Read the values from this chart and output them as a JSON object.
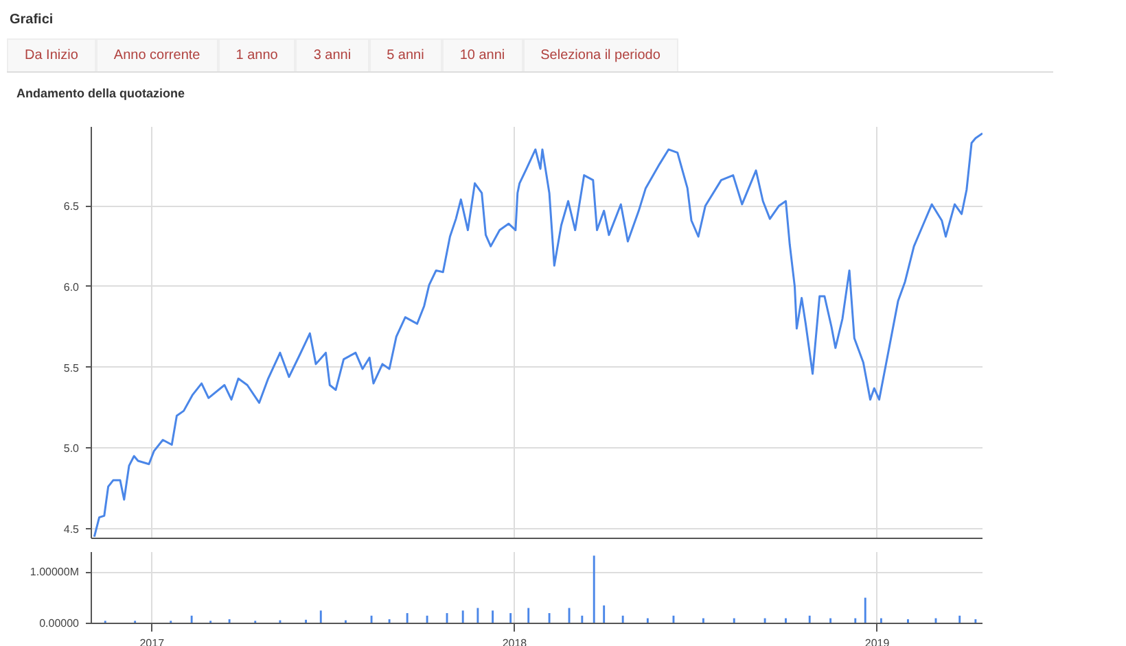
{
  "chart_data": [
    {
      "type": "line",
      "title": "Grafici",
      "subtitle": "Andamento della quotazione",
      "annotations": [
        "Da Inizio",
        "Anno corrente",
        "1 anno",
        "3 anni",
        "5 anni",
        "10 anni",
        "Seleziona il periodo"
      ],
      "x": [
        "2016-11-04",
        "2016-11-09",
        "2016-11-14",
        "2016-11-18",
        "2016-11-23",
        "2016-11-30",
        "2016-12-04",
        "2016-12-09",
        "2016-12-14",
        "2016-12-18",
        "2016-12-29",
        "2017-01-03",
        "2017-01-12",
        "2017-01-21",
        "2017-01-26",
        "2017-02-02",
        "2017-02-11",
        "2017-02-20",
        "2017-02-27",
        "2017-03-15",
        "2017-03-22",
        "2017-03-29",
        "2017-04-07",
        "2017-04-19",
        "2017-04-28",
        "2017-05-10",
        "2017-05-19",
        "2017-05-30",
        "2017-06-09",
        "2017-06-15",
        "2017-06-25",
        "2017-06-29",
        "2017-07-05",
        "2017-07-13",
        "2017-07-25",
        "2017-08-01",
        "2017-08-08",
        "2017-08-12",
        "2017-08-21",
        "2017-08-28",
        "2017-09-04",
        "2017-09-13",
        "2017-09-25",
        "2017-10-02",
        "2017-10-07",
        "2017-10-14",
        "2017-10-21",
        "2017-10-28",
        "2017-11-03",
        "2017-11-08",
        "2017-11-15",
        "2017-11-22",
        "2017-11-29",
        "2017-12-03",
        "2017-12-08",
        "2017-12-17",
        "2017-12-26",
        "2018-01-02",
        "2018-01-04",
        "2018-01-06",
        "2018-01-13",
        "2018-01-22",
        "2018-01-27",
        "2018-01-29",
        "2018-02-05",
        "2018-02-10",
        "2018-02-17",
        "2018-02-24",
        "2018-03-03",
        "2018-03-12",
        "2018-03-21",
        "2018-03-25",
        "2018-04-01",
        "2018-04-06",
        "2018-04-18",
        "2018-04-25",
        "2018-05-06",
        "2018-05-13",
        "2018-05-27",
        "2018-06-05",
        "2018-06-14",
        "2018-06-24",
        "2018-06-28",
        "2018-07-05",
        "2018-07-12",
        "2018-07-28",
        "2018-08-09",
        "2018-08-18",
        "2018-09-01",
        "2018-09-08",
        "2018-09-15",
        "2018-09-24",
        "2018-10-01",
        "2018-10-05",
        "2018-10-10",
        "2018-10-12",
        "2018-10-17",
        "2018-10-21",
        "2018-10-28",
        "2018-11-04",
        "2018-11-09",
        "2018-11-16",
        "2018-11-20",
        "2018-11-27",
        "2018-12-04",
        "2018-12-09",
        "2018-12-18",
        "2018-12-25",
        "2018-12-29",
        "2019-01-03",
        "2019-01-13",
        "2019-01-22",
        "2019-01-29",
        "2019-02-07",
        "2019-02-16",
        "2019-02-25",
        "2019-03-07",
        "2019-03-11",
        "2019-03-20",
        "2019-03-27",
        "2019-04-01",
        "2019-04-06",
        "2019-04-10",
        "2019-04-17"
      ],
      "series": [
        {
          "color": "#4a86e8",
          "values": [
            4.45,
            4.57,
            4.58,
            4.76,
            4.8,
            4.8,
            4.68,
            4.89,
            4.95,
            4.92,
            4.9,
            4.98,
            5.05,
            5.02,
            5.2,
            5.23,
            5.33,
            5.4,
            5.31,
            5.39,
            5.3,
            5.43,
            5.39,
            5.28,
            5.43,
            5.59,
            5.44,
            5.58,
            5.71,
            5.52,
            5.59,
            5.39,
            5.36,
            5.55,
            5.59,
            5.49,
            5.56,
            5.4,
            5.52,
            5.49,
            5.69,
            5.81,
            5.77,
            5.88,
            6.01,
            6.1,
            6.09,
            6.31,
            6.42,
            6.54,
            6.35,
            6.64,
            6.58,
            6.32,
            6.25,
            6.35,
            6.39,
            6.35,
            6.58,
            6.64,
            6.73,
            6.85,
            6.73,
            6.85,
            6.58,
            6.13,
            6.38,
            6.53,
            6.35,
            6.69,
            6.66,
            6.35,
            6.47,
            6.32,
            6.51,
            6.28,
            6.47,
            6.61,
            6.76,
            6.85,
            6.83,
            6.61,
            6.41,
            6.31,
            6.5,
            6.66,
            6.69,
            6.51,
            6.72,
            6.53,
            6.42,
            6.5,
            6.53,
            6.26,
            6.0,
            5.74,
            5.93,
            5.77,
            5.46,
            5.94,
            5.94,
            5.75,
            5.62,
            5.8,
            6.1,
            5.68,
            5.53,
            5.3,
            5.37,
            5.3,
            5.62,
            5.91,
            6.03,
            6.25,
            6.38,
            6.51,
            6.41,
            6.31,
            6.51,
            6.45,
            6.6,
            6.89,
            6.92,
            6.95
          ]
        }
      ],
      "xlim": [
        "2016-11-01",
        "2019-04-17"
      ],
      "xticks": [
        {
          "value": "2017-01-01",
          "label": null
        },
        {
          "value": "2018-01-01",
          "label": null
        },
        {
          "value": "2019-01-01",
          "label": null
        }
      ],
      "ylim": [
        4.44,
        6.99
      ],
      "yticks": [
        {
          "value": 4.5,
          "label": "4.5"
        },
        {
          "value": 5.0,
          "label": "5.0"
        },
        {
          "value": 5.5,
          "label": "5.5"
        },
        {
          "value": 6.0,
          "label": "6.0"
        },
        {
          "value": 6.5,
          "label": "6.5"
        }
      ],
      "tick_labels": "y",
      "grid": true
    },
    {
      "type": "bar",
      "x": [
        "2016-11-15",
        "2016-12-15",
        "2017-01-20",
        "2017-02-10",
        "2017-03-01",
        "2017-03-20",
        "2017-04-15",
        "2017-05-10",
        "2017-06-05",
        "2017-06-20",
        "2017-07-15",
        "2017-08-10",
        "2017-08-28",
        "2017-09-15",
        "2017-10-05",
        "2017-10-25",
        "2017-11-10",
        "2017-11-25",
        "2017-12-10",
        "2017-12-28",
        "2018-01-15",
        "2018-02-05",
        "2018-02-25",
        "2018-03-10",
        "2018-03-22",
        "2018-04-01",
        "2018-04-20",
        "2018-05-15",
        "2018-06-10",
        "2018-07-10",
        "2018-08-10",
        "2018-09-10",
        "2018-10-01",
        "2018-10-25",
        "2018-11-15",
        "2018-12-10",
        "2018-12-20",
        "2019-01-05",
        "2019-02-01",
        "2019-03-01",
        "2019-03-25",
        "2019-04-10"
      ],
      "series": [
        {
          "color": "#4a86e8",
          "values": [
            50000,
            50000,
            50000,
            150000,
            50000,
            80000,
            50000,
            60000,
            70000,
            250000,
            60000,
            150000,
            80000,
            200000,
            150000,
            200000,
            250000,
            300000,
            250000,
            200000,
            300000,
            200000,
            300000,
            150000,
            1320000,
            350000,
            150000,
            100000,
            150000,
            100000,
            100000,
            100000,
            100000,
            150000,
            100000,
            100000,
            500000,
            100000,
            80000,
            100000,
            150000,
            80000
          ]
        }
      ],
      "xlim": [
        "2016-11-01",
        "2019-04-17"
      ],
      "xticks": [
        {
          "value": "2017-01-01",
          "label": "2017"
        },
        {
          "value": "2018-01-01",
          "label": "2018"
        },
        {
          "value": "2019-01-01",
          "label": "2019"
        }
      ],
      "ylim": [
        0,
        1390000
      ],
      "yticks": [
        {
          "value": 0,
          "label": "0.00000"
        },
        {
          "value": 1000000,
          "label": "1.00000M"
        }
      ],
      "grid": true
    }
  ]
}
